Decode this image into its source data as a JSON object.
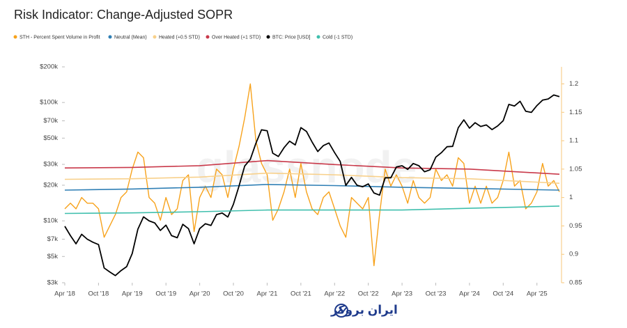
{
  "chart_data": {
    "type": "line",
    "title": "Risk Indicator: Change-Adjusted SOPR",
    "watermark": "glassnode",
    "footer_brand": "ایران بروکر",
    "y_log": true,
    "x": [
      "2018-04",
      "2018-05",
      "2018-06",
      "2018-07",
      "2018-08",
      "2018-09",
      "2018-10",
      "2018-11",
      "2018-12",
      "2019-01",
      "2019-02",
      "2019-03",
      "2019-04",
      "2019-05",
      "2019-06",
      "2019-07",
      "2019-08",
      "2019-09",
      "2019-10",
      "2019-11",
      "2019-12",
      "2020-01",
      "2020-02",
      "2020-03",
      "2020-04",
      "2020-05",
      "2020-06",
      "2020-07",
      "2020-08",
      "2020-09",
      "2020-10",
      "2020-11",
      "2020-12",
      "2021-01",
      "2021-02",
      "2021-03",
      "2021-04",
      "2021-05",
      "2021-06",
      "2021-07",
      "2021-08",
      "2021-09",
      "2021-10",
      "2021-11",
      "2021-12",
      "2022-01",
      "2022-02",
      "2022-03",
      "2022-04",
      "2022-05",
      "2022-06",
      "2022-07",
      "2022-08",
      "2022-09",
      "2022-10",
      "2022-11",
      "2022-12",
      "2023-01",
      "2023-02",
      "2023-03",
      "2023-04",
      "2023-05",
      "2023-06",
      "2023-07",
      "2023-08",
      "2023-09",
      "2023-10",
      "2023-11",
      "2023-12",
      "2024-01",
      "2024-02",
      "2024-03",
      "2024-04",
      "2024-05",
      "2024-06",
      "2024-07",
      "2024-08",
      "2024-09",
      "2024-10",
      "2024-11",
      "2024-12",
      "2025-01",
      "2025-02",
      "2025-03",
      "2025-04",
      "2025-05",
      "2025-06",
      "2025-07",
      "2025-08"
    ],
    "xlim": [
      "2018-04",
      "2025-08"
    ],
    "xticks": [
      {
        "value": "2018-04",
        "label": "Apr '18"
      },
      {
        "value": "2018-10",
        "label": "Oct '18"
      },
      {
        "value": "2019-04",
        "label": "Apr '19"
      },
      {
        "value": "2019-10",
        "label": "Oct '19"
      },
      {
        "value": "2020-04",
        "label": "Apr '20"
      },
      {
        "value": "2020-10",
        "label": "Oct '20"
      },
      {
        "value": "2021-04",
        "label": "Apr '21"
      },
      {
        "value": "2021-10",
        "label": "Oct '21"
      },
      {
        "value": "2022-04",
        "label": "Apr '22"
      },
      {
        "value": "2022-10",
        "label": "Oct '22"
      },
      {
        "value": "2023-04",
        "label": "Apr '23"
      },
      {
        "value": "2023-10",
        "label": "Oct '23"
      },
      {
        "value": "2024-04",
        "label": "Apr '24"
      },
      {
        "value": "2024-10",
        "label": "Oct '24"
      },
      {
        "value": "2025-04",
        "label": "Apr '25"
      }
    ],
    "ylim": [
      3000,
      200000
    ],
    "yticks": [
      {
        "value": 3000,
        "label": "$3k"
      },
      {
        "value": 5000,
        "label": "$5k"
      },
      {
        "value": 7000,
        "label": "$7k"
      },
      {
        "value": 10000,
        "label": "$10k"
      },
      {
        "value": 20000,
        "label": "$20k"
      },
      {
        "value": 30000,
        "label": "$30k"
      },
      {
        "value": 50000,
        "label": "$50k"
      },
      {
        "value": 70000,
        "label": "$70k"
      },
      {
        "value": 100000,
        "label": "$100k"
      },
      {
        "value": 200000,
        "label": "$200k"
      }
    ],
    "y2lim": [
      0.85,
      1.23
    ],
    "y2ticks": [
      0.85,
      0.9,
      0.95,
      1,
      1.05,
      1.1,
      1.15,
      1.2
    ],
    "series": [
      {
        "name": "STH - Percent Spent Volume in Profit",
        "color": "#f7a21b",
        "axis": "y2",
        "values": [
          0.98,
          0.99,
          0.98,
          1.0,
          0.99,
          0.99,
          0.98,
          0.93,
          0.95,
          0.97,
          1.0,
          1.01,
          1.05,
          1.08,
          1.07,
          1.0,
          0.99,
          0.96,
          1.0,
          0.97,
          0.98,
          1.03,
          1.04,
          0.94,
          1.0,
          1.02,
          1.0,
          1.05,
          1.04,
          1.0,
          1.05,
          1.09,
          1.14,
          1.2,
          1.1,
          1.06,
          1.04,
          0.96,
          0.98,
          1.01,
          1.05,
          1.0,
          1.06,
          1.01,
          0.98,
          0.97,
          1.0,
          1.01,
          0.98,
          0.95,
          0.93,
          1.0,
          0.99,
          0.98,
          1.0,
          0.88,
          0.97,
          1.05,
          1.02,
          1.04,
          1.02,
          0.99,
          1.03,
          1.0,
          0.99,
          1.0,
          1.05,
          1.03,
          1.04,
          1.02,
          1.07,
          1.06,
          0.99,
          1.02,
          0.99,
          1.02,
          0.99,
          1.0,
          1.03,
          1.08,
          1.02,
          1.03,
          0.98,
          0.99,
          1.01,
          1.06,
          1.02,
          1.03,
          1.01
        ]
      },
      {
        "name": "Neutral (Mean)",
        "color": "#2f7fb5",
        "axis": "y2",
        "x": [
          "2018-04",
          "2019-04",
          "2020-04",
          "2021-04",
          "2022-04",
          "2023-04",
          "2024-04",
          "2025-08"
        ],
        "values": [
          1.013,
          1.015,
          1.018,
          1.023,
          1.021,
          1.018,
          1.016,
          1.013
        ]
      },
      {
        "name": "Heated (+0.5 STD)",
        "color": "#f8d08a",
        "axis": "y2",
        "x": [
          "2018-04",
          "2019-04",
          "2020-04",
          "2021-04",
          "2022-04",
          "2023-04",
          "2024-04",
          "2025-08"
        ],
        "values": [
          1.032,
          1.033,
          1.036,
          1.043,
          1.04,
          1.035,
          1.033,
          1.025
        ]
      },
      {
        "name": "Over Heated (+1 STD)",
        "color": "#c9394a",
        "axis": "y2",
        "x": [
          "2018-04",
          "2019-04",
          "2020-04",
          "2021-04",
          "2022-04",
          "2023-04",
          "2024-04",
          "2025-08"
        ],
        "values": [
          1.052,
          1.053,
          1.056,
          1.065,
          1.058,
          1.052,
          1.05,
          1.041
        ]
      },
      {
        "name": "BTC: Price [USD]",
        "color": "#000000",
        "values": [
          9000,
          7500,
          6400,
          7700,
          7000,
          6600,
          6300,
          4000,
          3700,
          3450,
          3800,
          4100,
          5300,
          8500,
          10800,
          10000,
          9600,
          8300,
          9200,
          7500,
          7200,
          9350,
          8600,
          6400,
          8600,
          9450,
          9150,
          11300,
          11650,
          10780,
          13800,
          19700,
          29000,
          33100,
          45200,
          58800,
          57700,
          37300,
          35000,
          41500,
          47100,
          43800,
          61300,
          57000,
          46300,
          38500,
          43200,
          45500,
          37700,
          31800,
          19900,
          23300,
          20000,
          19400,
          20500,
          17200,
          16500,
          23100,
          23100,
          28500,
          29200,
          27200,
          30500,
          29200,
          26000,
          27000,
          34500,
          37700,
          42300,
          42600,
          61200,
          71300,
          60700,
          67500,
          62700,
          64600,
          59000,
          63300,
          70200,
          96400,
          93400,
          102400,
          84400,
          82500,
          94200,
          104600,
          107100,
          115700,
          112000
        ]
      },
      {
        "name": "Cold (-1 STD)",
        "color": "#3fbfad",
        "axis": "y2",
        "x": [
          "2018-04",
          "2019-04",
          "2020-04",
          "2021-04",
          "2022-04",
          "2023-04",
          "2024-04",
          "2025-08"
        ],
        "values": [
          0.972,
          0.973,
          0.975,
          0.978,
          0.978,
          0.978,
          0.981,
          0.985
        ]
      }
    ]
  }
}
